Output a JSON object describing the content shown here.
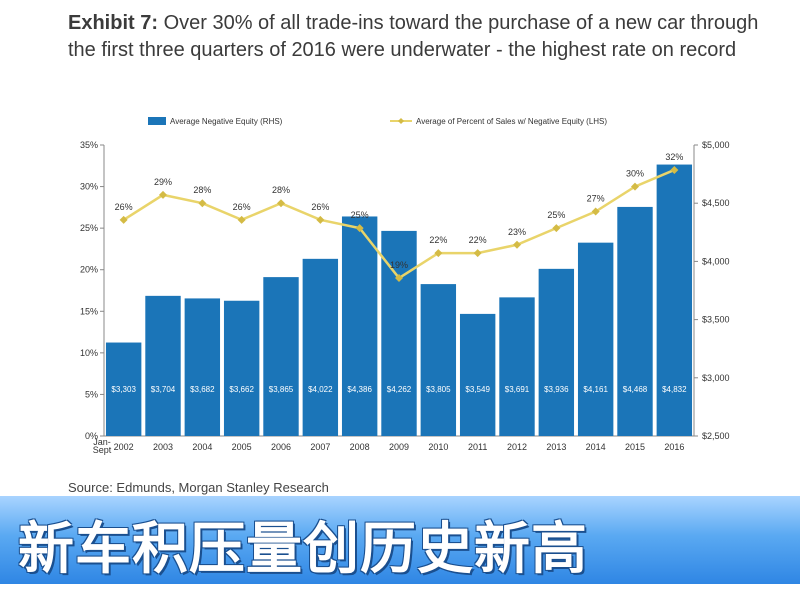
{
  "title_lead": "Exhibit 7:",
  "title_rest": " Over 30% of all trade-ins toward the purchase of a new car through the first three quarters of 2016 were underwater - the highest rate on record",
  "source": "Source: Edmunds, Morgan Stanley Research",
  "banner_text": "新车积压量创历史新高",
  "chart_data": {
    "type": "bar",
    "categories": [
      "2002",
      "2003",
      "2004",
      "2005",
      "2006",
      "2007",
      "2008",
      "2009",
      "2010",
      "2011",
      "2012",
      "2013",
      "2014",
      "2015",
      "2016"
    ],
    "x_extra_label": [
      "Jan-",
      "Sept"
    ],
    "series": [
      {
        "name": "Average Negative Equity (RHS)",
        "type": "bar",
        "axis": "right",
        "values": [
          3303,
          3704,
          3682,
          3662,
          3865,
          4022,
          4386,
          4262,
          3805,
          3549,
          3691,
          3936,
          4161,
          4468,
          4832
        ],
        "labels": [
          "$3,303",
          "$3,704",
          "$3,682",
          "$3,662",
          "$3,865",
          "$4,022",
          "$4,386",
          "$4,262",
          "$3,805",
          "$3,549",
          "$3,691",
          "$3,936",
          "$4,161",
          "$4,468",
          "$4,832"
        ]
      },
      {
        "name": "Average of Percent of Sales w/ Negative Equity (LHS)",
        "type": "line",
        "axis": "left",
        "values": [
          26,
          29,
          28,
          26,
          28,
          26,
          25,
          19,
          22,
          22,
          23,
          25,
          27,
          30,
          32
        ],
        "labels": [
          "26%",
          "29%",
          "28%",
          "26%",
          "28%",
          "26%",
          "25%",
          "19%",
          "22%",
          "22%",
          "23%",
          "25%",
          "27%",
          "30%",
          "32%"
        ]
      }
    ],
    "y_left": {
      "min": 0,
      "max": 35,
      "ticks": [
        "0%",
        "5%",
        "10%",
        "15%",
        "20%",
        "25%",
        "30%",
        "35%"
      ]
    },
    "y_right": {
      "min": 2500,
      "max": 5000,
      "ticks": [
        "$2,500",
        "$3,000",
        "$3,500",
        "$4,000",
        "$4,500",
        "$5,000"
      ]
    },
    "legend_position": "top",
    "colors": {
      "bar": "#1b75b8",
      "line": "#e9d46a",
      "marker": "#d4bb45"
    }
  }
}
